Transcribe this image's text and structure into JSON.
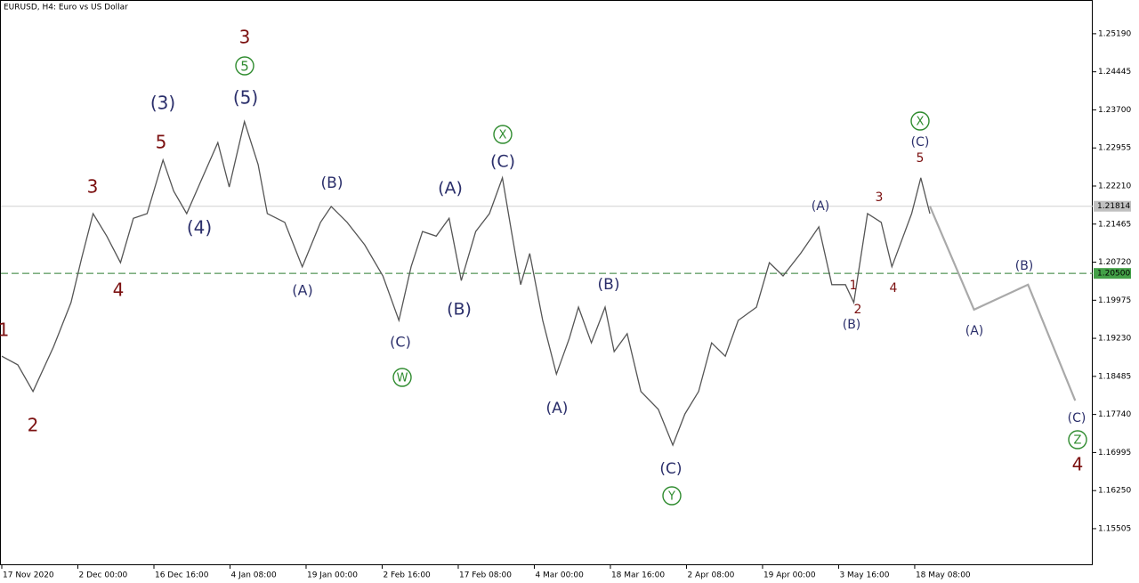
{
  "chart_data": {
    "type": "line",
    "title": "EURUSD, H4:  Euro vs US Dollar",
    "xlim": [
      0,
      14.34
    ],
    "ylim": [
      1.1479,
      1.2585
    ],
    "xticks": [
      {
        "value": 0,
        "label": "17 Nov 2020"
      },
      {
        "value": 1,
        "label": "2 Dec 00:00"
      },
      {
        "value": 2,
        "label": "16 Dec 16:00"
      },
      {
        "value": 3,
        "label": "4 Jan 08:00"
      },
      {
        "value": 4,
        "label": "19 Jan 00:00"
      },
      {
        "value": 5,
        "label": "2 Feb 16:00"
      },
      {
        "value": 6,
        "label": "17 Feb 08:00"
      },
      {
        "value": 7,
        "label": "4 Mar 00:00"
      },
      {
        "value": 8,
        "label": "18 Mar 16:00"
      },
      {
        "value": 9,
        "label": "2 Apr 08:00"
      },
      {
        "value": 10,
        "label": "19 Apr 00:00"
      },
      {
        "value": 11,
        "label": "3 May 16:00"
      },
      {
        "value": 12,
        "label": "18 May 08:00"
      }
    ],
    "yticks": [
      {
        "value": 1.2519,
        "label": "1.25190"
      },
      {
        "value": 1.24445,
        "label": "1.24445"
      },
      {
        "value": 1.237,
        "label": "1.23700"
      },
      {
        "value": 1.22955,
        "label": "1.22955"
      },
      {
        "value": 1.2221,
        "label": "1.22210"
      },
      {
        "value": 1.21465,
        "label": "1.21465"
      },
      {
        "value": 1.2072,
        "label": "1.20720"
      },
      {
        "value": 1.19975,
        "label": "1.19975"
      },
      {
        "value": 1.1923,
        "label": "1.19230"
      },
      {
        "value": 1.18485,
        "label": "1.18485"
      },
      {
        "value": 1.1774,
        "label": "1.17740"
      },
      {
        "value": 1.16995,
        "label": "1.16995"
      },
      {
        "value": 1.1625,
        "label": "1.16250"
      },
      {
        "value": 1.15505,
        "label": "1.15505"
      }
    ],
    "series": [
      {
        "name": "EURUSD",
        "color": "#555555",
        "x": [
          0,
          0.21,
          0.41,
          0.68,
          0.91,
          1.05,
          1.2,
          1.38,
          1.56,
          1.73,
          1.91,
          2.12,
          2.26,
          2.43,
          2.61,
          2.84,
          2.99,
          3.19,
          3.37,
          3.49,
          3.72,
          3.95,
          4.19,
          4.33,
          4.54,
          4.77,
          5.01,
          5.22,
          5.38,
          5.53,
          5.71,
          5.88,
          6.04,
          6.23,
          6.41,
          6.58,
          6.7,
          6.82,
          6.94,
          7.11,
          7.29,
          7.46,
          7.58,
          7.75,
          7.93,
          8.05,
          8.22,
          8.4,
          8.63,
          8.82,
          8.98,
          9.16,
          9.33,
          9.51,
          9.68,
          9.92,
          10.09,
          10.27,
          10.5,
          10.74,
          10.91,
          11.09,
          11.2,
          11.38,
          11.56,
          11.7,
          11.85,
          11.96,
          12.08,
          12.2
        ],
        "values": [
          1.1888,
          1.1871,
          1.1819,
          1.1906,
          1.1993,
          1.208,
          1.2167,
          1.2123,
          1.2071,
          1.2158,
          1.2167,
          1.2272,
          1.2211,
          1.2167,
          1.2228,
          1.2306,
          1.2219,
          1.2347,
          1.2263,
          1.2167,
          1.215,
          1.2063,
          1.215,
          1.2181,
          1.215,
          1.2106,
          1.2045,
          1.1958,
          1.2063,
          1.2132,
          1.2123,
          1.2158,
          1.2036,
          1.2132,
          1.2167,
          1.2237,
          1.2132,
          1.2028,
          1.2089,
          1.1958,
          1.1853,
          1.1923,
          1.1984,
          1.1914,
          1.1984,
          1.1897,
          1.1932,
          1.1819,
          1.1784,
          1.1714,
          1.1775,
          1.1819,
          1.1914,
          1.1888,
          1.1958,
          1.1984,
          1.2071,
          1.2045,
          1.2089,
          1.2141,
          1.2028,
          1.2028,
          1.1993,
          1.2167,
          1.215,
          1.2063,
          1.2123,
          1.2167,
          1.2237,
          1.2167
        ]
      },
      {
        "name": "Forecast",
        "color": "#a9a9a9",
        "x": [
          12.2,
          12.78,
          13.49,
          14.11
        ],
        "values": [
          1.21814,
          1.1979,
          1.2028,
          1.1801
        ]
      }
    ],
    "current_price": 1.21814,
    "level": {
      "value": 1.205,
      "label": "1.20500"
    },
    "annotations": [
      "3",
      "5",
      "(5)",
      "(3)",
      "5",
      "3",
      "4",
      "1",
      "2",
      "(4)",
      "(B)",
      "(A)",
      "(C)",
      "W",
      "(A)",
      "(B)",
      "X",
      "(C)",
      "(B)",
      "(A)",
      "(C)",
      "Y",
      "(A)",
      "3",
      "1",
      "2",
      "(B)",
      "4",
      "X",
      "(C)",
      "5",
      "(B)",
      "(A)",
      "(C)",
      "Z",
      "4"
    ]
  }
}
